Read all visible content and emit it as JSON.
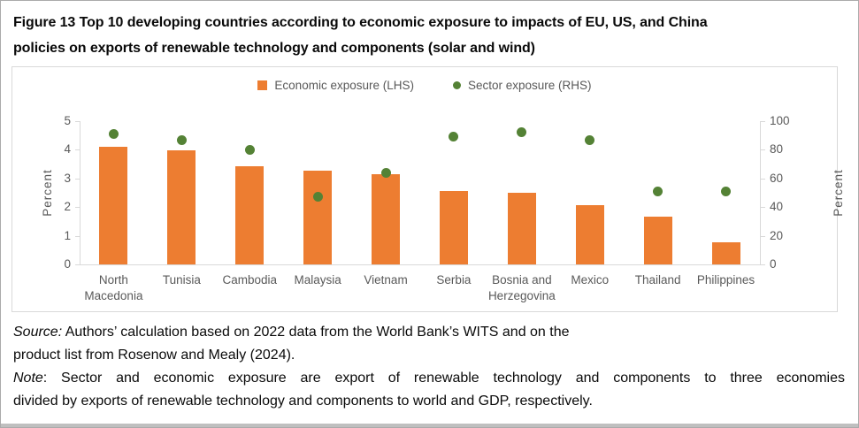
{
  "figure": {
    "title_line1": "Figure 13 Top 10 developing countries according to economic exposure to impacts of EU, US, and China",
    "title_line2": "policies on exports of renewable technology and components (solar and wind)"
  },
  "legend": {
    "items": [
      {
        "label": "Economic exposure (LHS)",
        "marker": "square",
        "color": "#ED7D31"
      },
      {
        "label": "Sector exposure (RHS)",
        "marker": "circle",
        "color": "#548235"
      }
    ]
  },
  "chart_data": {
    "type": "bar",
    "title": "Top 10 developing countries according to economic exposure to impacts of EU, US, and China policies on exports of renewable technology and components (solar and wind)",
    "categories": [
      "North Macedonia",
      "Tunisia",
      "Cambodia",
      "Malaysia",
      "Vietnam",
      "Serbia",
      "Bosnia and Herzegovina",
      "Mexico",
      "Thailand",
      "Philippines"
    ],
    "series": [
      {
        "name": "Economic exposure (LHS)",
        "type": "bar",
        "axis": "left",
        "color": "#ED7D31",
        "values": [
          4.1,
          3.98,
          3.43,
          3.27,
          3.15,
          2.55,
          2.5,
          2.08,
          1.68,
          0.78
        ]
      },
      {
        "name": "Sector exposure (RHS)",
        "type": "scatter",
        "axis": "right",
        "color": "#548235",
        "values": [
          91,
          87,
          80,
          47,
          64,
          89,
          92,
          87,
          51,
          51
        ]
      }
    ],
    "left_axis": {
      "label": "Percent",
      "min": 0,
      "max": 5,
      "ticks": [
        0,
        1,
        2,
        3,
        4,
        5
      ]
    },
    "right_axis": {
      "label": "Percent",
      "min": 0,
      "max": 100,
      "ticks": [
        0,
        20,
        40,
        60,
        80,
        100
      ]
    },
    "grid": false,
    "legend_position": "top-center"
  },
  "footer": {
    "source_label": "Source:",
    "source_line1_rest": " Authors’ calculation based on 2022 data from the World Bank’s WITS and on the",
    "source_line2": "product list from Rosenow and Mealy (2024).",
    "note_label": "Note",
    "note_line1_rest": ": Sector and economic exposure are export of renewable technology and components to three economies",
    "note_line2": "divided by exports of renewable technology and components to world and GDP, respectively."
  }
}
